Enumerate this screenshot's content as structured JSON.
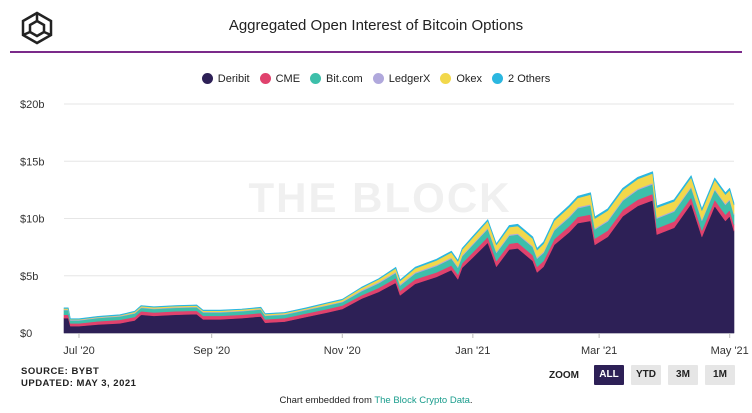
{
  "header": {
    "title": "Aggregated Open Interest of Bitcoin Options",
    "logo_icon": "the-block-cube-logo"
  },
  "colors": {
    "accent_rule": "#7b2a8a",
    "deribit": "#2d2056",
    "cme": "#e0426d",
    "bitcom": "#3dbfaa",
    "ledgerx": "#b0a8dc",
    "okex": "#f2d84b",
    "others": "#2bb7e0",
    "zoom_active": "#2d2056",
    "link": "#1a9d8d"
  },
  "watermark": "THE BLOCK",
  "source": {
    "line1": "SOURCE: BYBT",
    "line2": "UPDATED: MAY 3, 2021"
  },
  "zoom": {
    "label": "ZOOM",
    "buttons": [
      "ALL",
      "YTD",
      "3M",
      "1M"
    ],
    "active": "ALL"
  },
  "embed": {
    "prefix": "Chart embedded from ",
    "link_text": "The Block Crypto Data",
    "suffix": "."
  },
  "chart_data": {
    "type": "area",
    "stacked": true,
    "title": "Aggregated Open Interest of Bitcoin Options",
    "ylim": [
      0,
      20
    ],
    "y_ticks": [
      0,
      5,
      10,
      15,
      20
    ],
    "y_tick_labels": [
      "$0",
      "$5b",
      "$10b",
      "$15b",
      "$20b"
    ],
    "xlim": [
      "2020-06-24",
      "2021-05-03"
    ],
    "x_ticks": [
      "2020-07-01",
      "2020-09-01",
      "2020-11-01",
      "2021-01-01",
      "2021-03-01",
      "2021-05-01"
    ],
    "x_tick_labels": [
      "Jul '20",
      "Sep '20",
      "Nov '20",
      "Jan '21",
      "Mar '21",
      "May '21"
    ],
    "legend_position": "top-center",
    "grid": "horizontal",
    "x": [
      "2020-06-24",
      "2020-06-26",
      "2020-06-27",
      "2020-07-01",
      "2020-07-10",
      "2020-07-20",
      "2020-07-27",
      "2020-07-30",
      "2020-08-05",
      "2020-08-15",
      "2020-08-25",
      "2020-08-28",
      "2020-09-05",
      "2020-09-15",
      "2020-09-24",
      "2020-09-26",
      "2020-10-05",
      "2020-10-15",
      "2020-10-25",
      "2020-11-01",
      "2020-11-10",
      "2020-11-18",
      "2020-11-26",
      "2020-11-28",
      "2020-12-05",
      "2020-12-15",
      "2020-12-22",
      "2020-12-25",
      "2020-12-27",
      "2021-01-01",
      "2021-01-08",
      "2021-01-12",
      "2021-01-18",
      "2021-01-22",
      "2021-01-29",
      "2021-01-31",
      "2021-02-03",
      "2021-02-08",
      "2021-02-15",
      "2021-02-19",
      "2021-02-25",
      "2021-02-27",
      "2021-03-05",
      "2021-03-12",
      "2021-03-19",
      "2021-03-26",
      "2021-03-28",
      "2021-04-05",
      "2021-04-13",
      "2021-04-18",
      "2021-04-24",
      "2021-04-27",
      "2021-04-29",
      "2021-05-01",
      "2021-05-03"
    ],
    "series": [
      {
        "name": "Deribit",
        "color": "#2d2056",
        "values": [
          1.3,
          1.3,
          0.6,
          0.6,
          0.75,
          0.85,
          1.1,
          1.6,
          1.5,
          1.6,
          1.65,
          1.2,
          1.2,
          1.3,
          1.45,
          0.9,
          1.0,
          1.4,
          1.8,
          2.1,
          3.0,
          3.6,
          4.4,
          3.3,
          4.3,
          4.9,
          5.5,
          4.7,
          5.7,
          6.6,
          7.9,
          5.8,
          7.3,
          7.4,
          6.3,
          5.3,
          5.8,
          7.7,
          8.8,
          9.6,
          9.8,
          7.7,
          8.4,
          10.2,
          11.1,
          11.6,
          8.6,
          9.2,
          11.3,
          8.4,
          11.1,
          10.3,
          9.8,
          10.2,
          8.9
        ]
      },
      {
        "name": "CME",
        "color": "#e0426d",
        "values": [
          0.3,
          0.3,
          0.25,
          0.25,
          0.28,
          0.3,
          0.3,
          0.3,
          0.3,
          0.3,
          0.3,
          0.3,
          0.3,
          0.3,
          0.3,
          0.3,
          0.3,
          0.3,
          0.3,
          0.3,
          0.3,
          0.35,
          0.4,
          0.4,
          0.4,
          0.4,
          0.4,
          0.4,
          0.4,
          0.45,
          0.5,
          0.5,
          0.5,
          0.5,
          0.5,
          0.5,
          0.5,
          0.5,
          0.55,
          0.55,
          0.55,
          0.55,
          0.55,
          0.55,
          0.55,
          0.55,
          0.55,
          0.55,
          0.55,
          0.55,
          0.55,
          0.55,
          0.55,
          0.55,
          0.55
        ]
      },
      {
        "name": "Bit.com",
        "color": "#3dbfaa",
        "values": [
          0.4,
          0.4,
          0.25,
          0.25,
          0.28,
          0.3,
          0.3,
          0.3,
          0.3,
          0.3,
          0.3,
          0.3,
          0.3,
          0.3,
          0.3,
          0.3,
          0.3,
          0.3,
          0.3,
          0.3,
          0.35,
          0.4,
          0.45,
          0.45,
          0.5,
          0.55,
          0.6,
          0.6,
          0.6,
          0.65,
          0.7,
          0.7,
          0.7,
          0.7,
          0.7,
          0.7,
          0.7,
          0.75,
          0.75,
          0.75,
          0.8,
          0.8,
          0.8,
          0.8,
          0.85,
          0.85,
          0.85,
          0.85,
          0.85,
          0.85,
          0.85,
          0.85,
          0.85,
          0.85,
          0.85
        ]
      },
      {
        "name": "LedgerX",
        "color": "#b0a8dc",
        "values": [
          0.05,
          0.05,
          0.05,
          0.05,
          0.05,
          0.05,
          0.05,
          0.05,
          0.05,
          0.05,
          0.05,
          0.05,
          0.05,
          0.05,
          0.05,
          0.05,
          0.05,
          0.05,
          0.05,
          0.05,
          0.1,
          0.1,
          0.1,
          0.1,
          0.1,
          0.1,
          0.1,
          0.1,
          0.1,
          0.1,
          0.1,
          0.1,
          0.1,
          0.1,
          0.1,
          0.1,
          0.1,
          0.1,
          0.1,
          0.1,
          0.1,
          0.1,
          0.1,
          0.1,
          0.1,
          0.1,
          0.1,
          0.1,
          0.1,
          0.1,
          0.1,
          0.1,
          0.1,
          0.1,
          0.1
        ]
      },
      {
        "name": "Okex",
        "color": "#f2d84b",
        "values": [
          0.1,
          0.1,
          0.05,
          0.05,
          0.05,
          0.05,
          0.1,
          0.1,
          0.1,
          0.1,
          0.1,
          0.1,
          0.1,
          0.1,
          0.1,
          0.1,
          0.1,
          0.1,
          0.15,
          0.15,
          0.2,
          0.25,
          0.3,
          0.3,
          0.35,
          0.4,
          0.45,
          0.45,
          0.5,
          0.55,
          0.6,
          0.6,
          0.65,
          0.65,
          0.65,
          0.65,
          0.7,
          0.75,
          0.8,
          0.8,
          0.85,
          0.85,
          0.85,
          0.85,
          0.85,
          0.85,
          0.85,
          0.8,
          0.8,
          0.8,
          0.8,
          0.8,
          0.8,
          0.8,
          0.8
        ]
      },
      {
        "name": "2 Others",
        "color": "#2bb7e0",
        "values": [
          0.05,
          0.05,
          0.05,
          0.05,
          0.05,
          0.05,
          0.05,
          0.05,
          0.05,
          0.05,
          0.05,
          0.05,
          0.05,
          0.05,
          0.05,
          0.05,
          0.05,
          0.05,
          0.05,
          0.05,
          0.05,
          0.05,
          0.1,
          0.1,
          0.1,
          0.1,
          0.1,
          0.1,
          0.1,
          0.1,
          0.1,
          0.1,
          0.15,
          0.15,
          0.15,
          0.15,
          0.15,
          0.15,
          0.15,
          0.15,
          0.15,
          0.15,
          0.15,
          0.15,
          0.15,
          0.15,
          0.15,
          0.15,
          0.15,
          0.15,
          0.15,
          0.15,
          0.15,
          0.15,
          0.15
        ]
      }
    ]
  }
}
